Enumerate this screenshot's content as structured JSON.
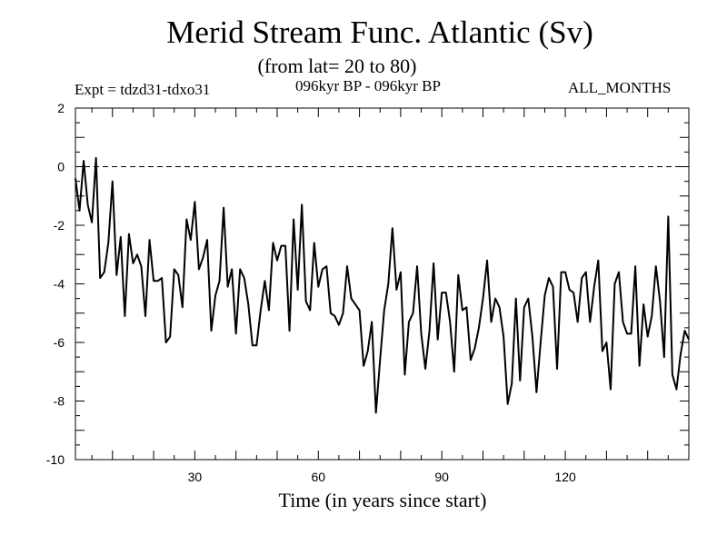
{
  "chart_data": {
    "type": "line",
    "title": "Merid Stream Func. Atlantic (Sv)",
    "subtitle": "(from lat= 20 to 80)",
    "experiment": "Expt = tdzd31-tdxo31",
    "period": "096kyr BP - 096kyr BP",
    "months": "ALL_MONTHS",
    "xlabel": "Time (in years since start)",
    "ylabel": "",
    "xlim": [
      1,
      150
    ],
    "ylim": [
      -10,
      2
    ],
    "x_ticks": [
      30,
      60,
      90,
      120
    ],
    "y_ticks": [
      2,
      0,
      -2,
      -4,
      -6,
      -8,
      -10
    ],
    "reference_line": 0,
    "series": [
      {
        "name": "Merid Stream Func.",
        "x_start": 1,
        "x_step": 1,
        "values": [
          -0.4,
          -1.5,
          0.2,
          -1.3,
          -1.9,
          0.3,
          -3.8,
          -3.6,
          -2.6,
          -0.5,
          -3.7,
          -2.4,
          -5.1,
          -2.3,
          -3.3,
          -3.0,
          -3.4,
          -5.1,
          -2.5,
          -3.9,
          -3.9,
          -3.8,
          -6.0,
          -5.8,
          -3.5,
          -3.7,
          -4.8,
          -1.8,
          -2.5,
          -1.2,
          -3.5,
          -3.1,
          -2.5,
          -5.6,
          -4.4,
          -3.9,
          -1.4,
          -4.1,
          -3.5,
          -5.7,
          -3.5,
          -3.8,
          -4.7,
          -6.1,
          -6.1,
          -4.9,
          -3.9,
          -4.9,
          -2.6,
          -3.2,
          -2.7,
          -2.7,
          -5.6,
          -1.8,
          -4.2,
          -1.3,
          -4.6,
          -4.9,
          -2.6,
          -4.1,
          -3.5,
          -3.4,
          -5.0,
          -5.1,
          -5.4,
          -5.0,
          -3.4,
          -4.5,
          -4.7,
          -4.9,
          -6.8,
          -6.3,
          -5.3,
          -8.4,
          -6.6,
          -4.9,
          -4.0,
          -2.1,
          -4.2,
          -3.6,
          -7.1,
          -5.3,
          -5.0,
          -3.4,
          -5.7,
          -6.9,
          -5.6,
          -3.3,
          -5.9,
          -4.3,
          -4.3,
          -5.3,
          -7.0,
          -3.7,
          -4.9,
          -4.8,
          -6.6,
          -6.2,
          -5.5,
          -4.5,
          -3.2,
          -5.3,
          -4.5,
          -4.8,
          -5.8,
          -8.1,
          -7.4,
          -4.5,
          -7.3,
          -4.8,
          -4.5,
          -5.8,
          -7.7,
          -6.0,
          -4.4,
          -3.8,
          -4.1,
          -6.9,
          -3.6,
          -3.6,
          -4.2,
          -4.3,
          -5.3,
          -3.8,
          -3.6,
          -5.3,
          -4.1,
          -3.2,
          -6.3,
          -6.0,
          -7.6,
          -4.0,
          -3.6,
          -5.3,
          -5.7,
          -5.7,
          -3.4,
          -6.8,
          -4.7,
          -5.8,
          -5.1,
          -3.4,
          -4.6,
          -6.5,
          -1.7,
          -7.1,
          -7.6,
          -6.4,
          -5.6,
          -5.9
        ]
      }
    ]
  }
}
